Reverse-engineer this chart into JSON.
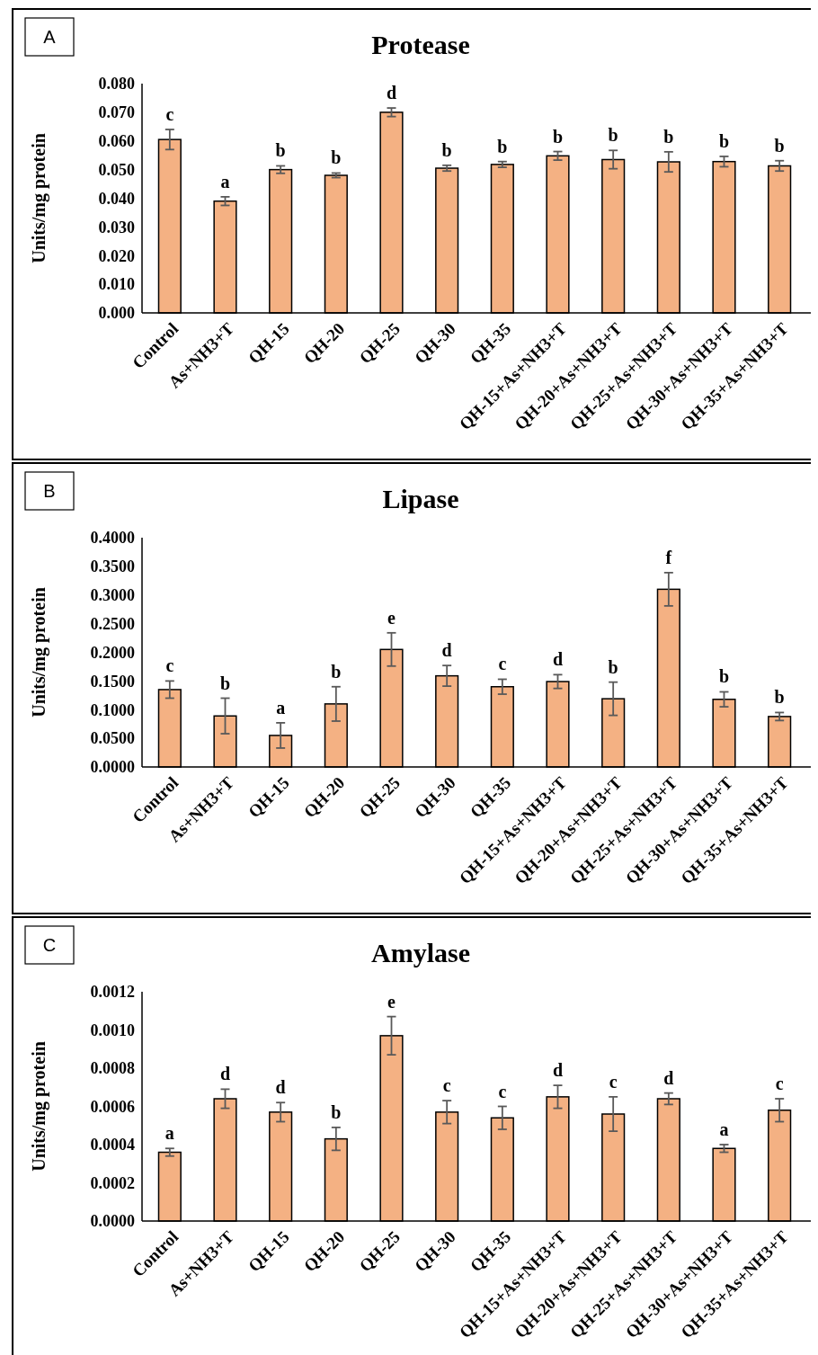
{
  "chart_data": [
    {
      "type": "bar",
      "title": "Protease",
      "ylabel": "Units/mg protein",
      "categories": [
        "Control",
        "As+NH3+T",
        "QH-15",
        "QH-20",
        "QH-25",
        "QH-30",
        "QH-35",
        "QH-15+As+NH3+T",
        "QH-20+As+NH3+T",
        "QH-25+As+NH3+T",
        "QH-30+As+NH3+T",
        "QH-35+As+NH3+T"
      ],
      "values": [
        0.0605,
        0.039,
        0.05,
        0.048,
        0.07,
        0.0505,
        0.0518,
        0.0548,
        0.0535,
        0.0527,
        0.0528,
        0.0513
      ],
      "errors": [
        0.0035,
        0.0015,
        0.0013,
        0.0008,
        0.0015,
        0.001,
        0.001,
        0.0015,
        0.0032,
        0.0035,
        0.0018,
        0.0018
      ],
      "color": "#f4b183",
      "ylim": [
        0,
        0.08
      ],
      "yticks": [
        {
          "value": 0,
          "label": "0.000"
        },
        {
          "value": 0.01,
          "label": "0.010"
        },
        {
          "value": 0.02,
          "label": "0.020"
        },
        {
          "value": 0.03,
          "label": "0.030"
        },
        {
          "value": 0.04,
          "label": "0.040"
        },
        {
          "value": 0.05,
          "label": "0.050"
        },
        {
          "value": 0.06,
          "label": "0.060"
        },
        {
          "value": 0.07,
          "label": "0.070"
        },
        {
          "value": 0.08,
          "label": "0.080"
        }
      ],
      "annotations": [
        "A",
        {
          "text": "c",
          "x": "Control",
          "y": 0.064
        },
        {
          "text": "a",
          "x": "As+NH3+T",
          "y": 0.0405
        },
        {
          "text": "b",
          "x": "QH-15",
          "y": 0.0513
        },
        {
          "text": "b",
          "x": "QH-20",
          "y": 0.0488
        },
        {
          "text": "d",
          "x": "QH-25",
          "y": 0.0715
        },
        {
          "text": "b",
          "x": "QH-30",
          "y": 0.0515
        },
        {
          "text": "b",
          "x": "QH-35",
          "y": 0.0528
        },
        {
          "text": "b",
          "x": "QH-15+As+NH3+T",
          "y": 0.0563
        },
        {
          "text": "b",
          "x": "QH-20+As+NH3+T",
          "y": 0.0567
        },
        {
          "text": "b",
          "x": "QH-25+As+NH3+T",
          "y": 0.0562
        },
        {
          "text": "b",
          "x": "QH-30+As+NH3+T",
          "y": 0.0546
        },
        {
          "text": "b",
          "x": "QH-35+As+NH3+T",
          "y": 0.0531
        }
      ]
    },
    {
      "type": "bar",
      "title": "Lipase",
      "ylabel": "Units/mg protein",
      "categories": [
        "Control",
        "As+NH3+T",
        "QH-15",
        "QH-20",
        "QH-25",
        "QH-30",
        "QH-35",
        "QH-15+As+NH3+T",
        "QH-20+As+NH3+T",
        "QH-25+As+NH3+T",
        "QH-30+As+NH3+T",
        "QH-35+As+NH3+T"
      ],
      "values": [
        0.135,
        0.089,
        0.055,
        0.11,
        0.205,
        0.159,
        0.14,
        0.149,
        0.119,
        0.31,
        0.118,
        0.088
      ],
      "errors": [
        0.015,
        0.031,
        0.022,
        0.03,
        0.029,
        0.018,
        0.013,
        0.012,
        0.029,
        0.029,
        0.013,
        0.007
      ],
      "color": "#f4b183",
      "ylim": [
        0,
        0.4
      ],
      "yticks": [
        {
          "value": 0,
          "label": "0.0000"
        },
        {
          "value": 0.05,
          "label": "0.0500"
        },
        {
          "value": 0.1,
          "label": "0.1000"
        },
        {
          "value": 0.15,
          "label": "0.1500"
        },
        {
          "value": 0.2,
          "label": "0.2000"
        },
        {
          "value": 0.25,
          "label": "0.2500"
        },
        {
          "value": 0.3,
          "label": "0.3000"
        },
        {
          "value": 0.35,
          "label": "0.3500"
        },
        {
          "value": 0.4,
          "label": "0.4000"
        }
      ],
      "annotations": [
        "B",
        {
          "text": "c",
          "x": "Control",
          "y": 0.15
        },
        {
          "text": "b",
          "x": "As+NH3+T",
          "y": 0.12
        },
        {
          "text": "a",
          "x": "QH-15",
          "y": 0.077
        },
        {
          "text": "b",
          "x": "QH-20",
          "y": 0.14
        },
        {
          "text": "e",
          "x": "QH-25",
          "y": 0.234
        },
        {
          "text": "d",
          "x": "QH-30",
          "y": 0.177
        },
        {
          "text": "c",
          "x": "QH-35",
          "y": 0.153
        },
        {
          "text": "d",
          "x": "QH-15+As+NH3+T",
          "y": 0.161
        },
        {
          "text": "b",
          "x": "QH-20+As+NH3+T",
          "y": 0.148
        },
        {
          "text": "f",
          "x": "QH-25+As+NH3+T",
          "y": 0.339
        },
        {
          "text": "b",
          "x": "QH-30+As+NH3+T",
          "y": 0.131
        },
        {
          "text": "b",
          "x": "QH-35+As+NH3+T",
          "y": 0.095
        }
      ]
    },
    {
      "type": "bar",
      "title": "Amylase",
      "ylabel": "Units/mg protein",
      "categories": [
        "Control",
        "As+NH3+T",
        "QH-15",
        "QH-20",
        "QH-25",
        "QH-30",
        "QH-35",
        "QH-15+As+NH3+T",
        "QH-20+As+NH3+T",
        "QH-25+As+NH3+T",
        "QH-30+As+NH3+T",
        "QH-35+As+NH3+T"
      ],
      "values": [
        0.00036,
        0.00064,
        0.00057,
        0.00043,
        0.00097,
        0.00057,
        0.00054,
        0.00065,
        0.00056,
        0.00064,
        0.00038,
        0.00058
      ],
      "errors": [
        2e-05,
        5e-05,
        5e-05,
        6e-05,
        0.0001,
        6e-05,
        6e-05,
        6e-05,
        9e-05,
        3e-05,
        2e-05,
        6e-05
      ],
      "color": "#f4b183",
      "ylim": [
        0,
        0.0012
      ],
      "yticks": [
        {
          "value": 0,
          "label": "0.0000"
        },
        {
          "value": 0.0002,
          "label": "0.0002"
        },
        {
          "value": 0.0004,
          "label": "0.0004"
        },
        {
          "value": 0.0006,
          "label": "0.0006"
        },
        {
          "value": 0.0008,
          "label": "0.0008"
        },
        {
          "value": 0.001,
          "label": "0.0010"
        },
        {
          "value": 0.0012,
          "label": "0.0012"
        }
      ],
      "annotations": [
        "C",
        {
          "text": "a",
          "x": "Control",
          "y": 0.00038
        },
        {
          "text": "d",
          "x": "As+NH3+T",
          "y": 0.00069
        },
        {
          "text": "d",
          "x": "QH-15",
          "y": 0.00062
        },
        {
          "text": "b",
          "x": "QH-20",
          "y": 0.00049
        },
        {
          "text": "e",
          "x": "QH-25",
          "y": 0.00107
        },
        {
          "text": "c",
          "x": "QH-30",
          "y": 0.00063
        },
        {
          "text": "c",
          "x": "QH-35",
          "y": 0.0006
        },
        {
          "text": "d",
          "x": "QH-15+As+NH3+T",
          "y": 0.00071
        },
        {
          "text": "c",
          "x": "QH-20+As+NH3+T",
          "y": 0.00065
        },
        {
          "text": "d",
          "x": "QH-25+As+NH3+T",
          "y": 0.00067
        },
        {
          "text": "a",
          "x": "QH-30+As+NH3+T",
          "y": 0.0004
        },
        {
          "text": "c",
          "x": "QH-35+As+NH3+T",
          "y": 0.00064
        }
      ]
    }
  ]
}
